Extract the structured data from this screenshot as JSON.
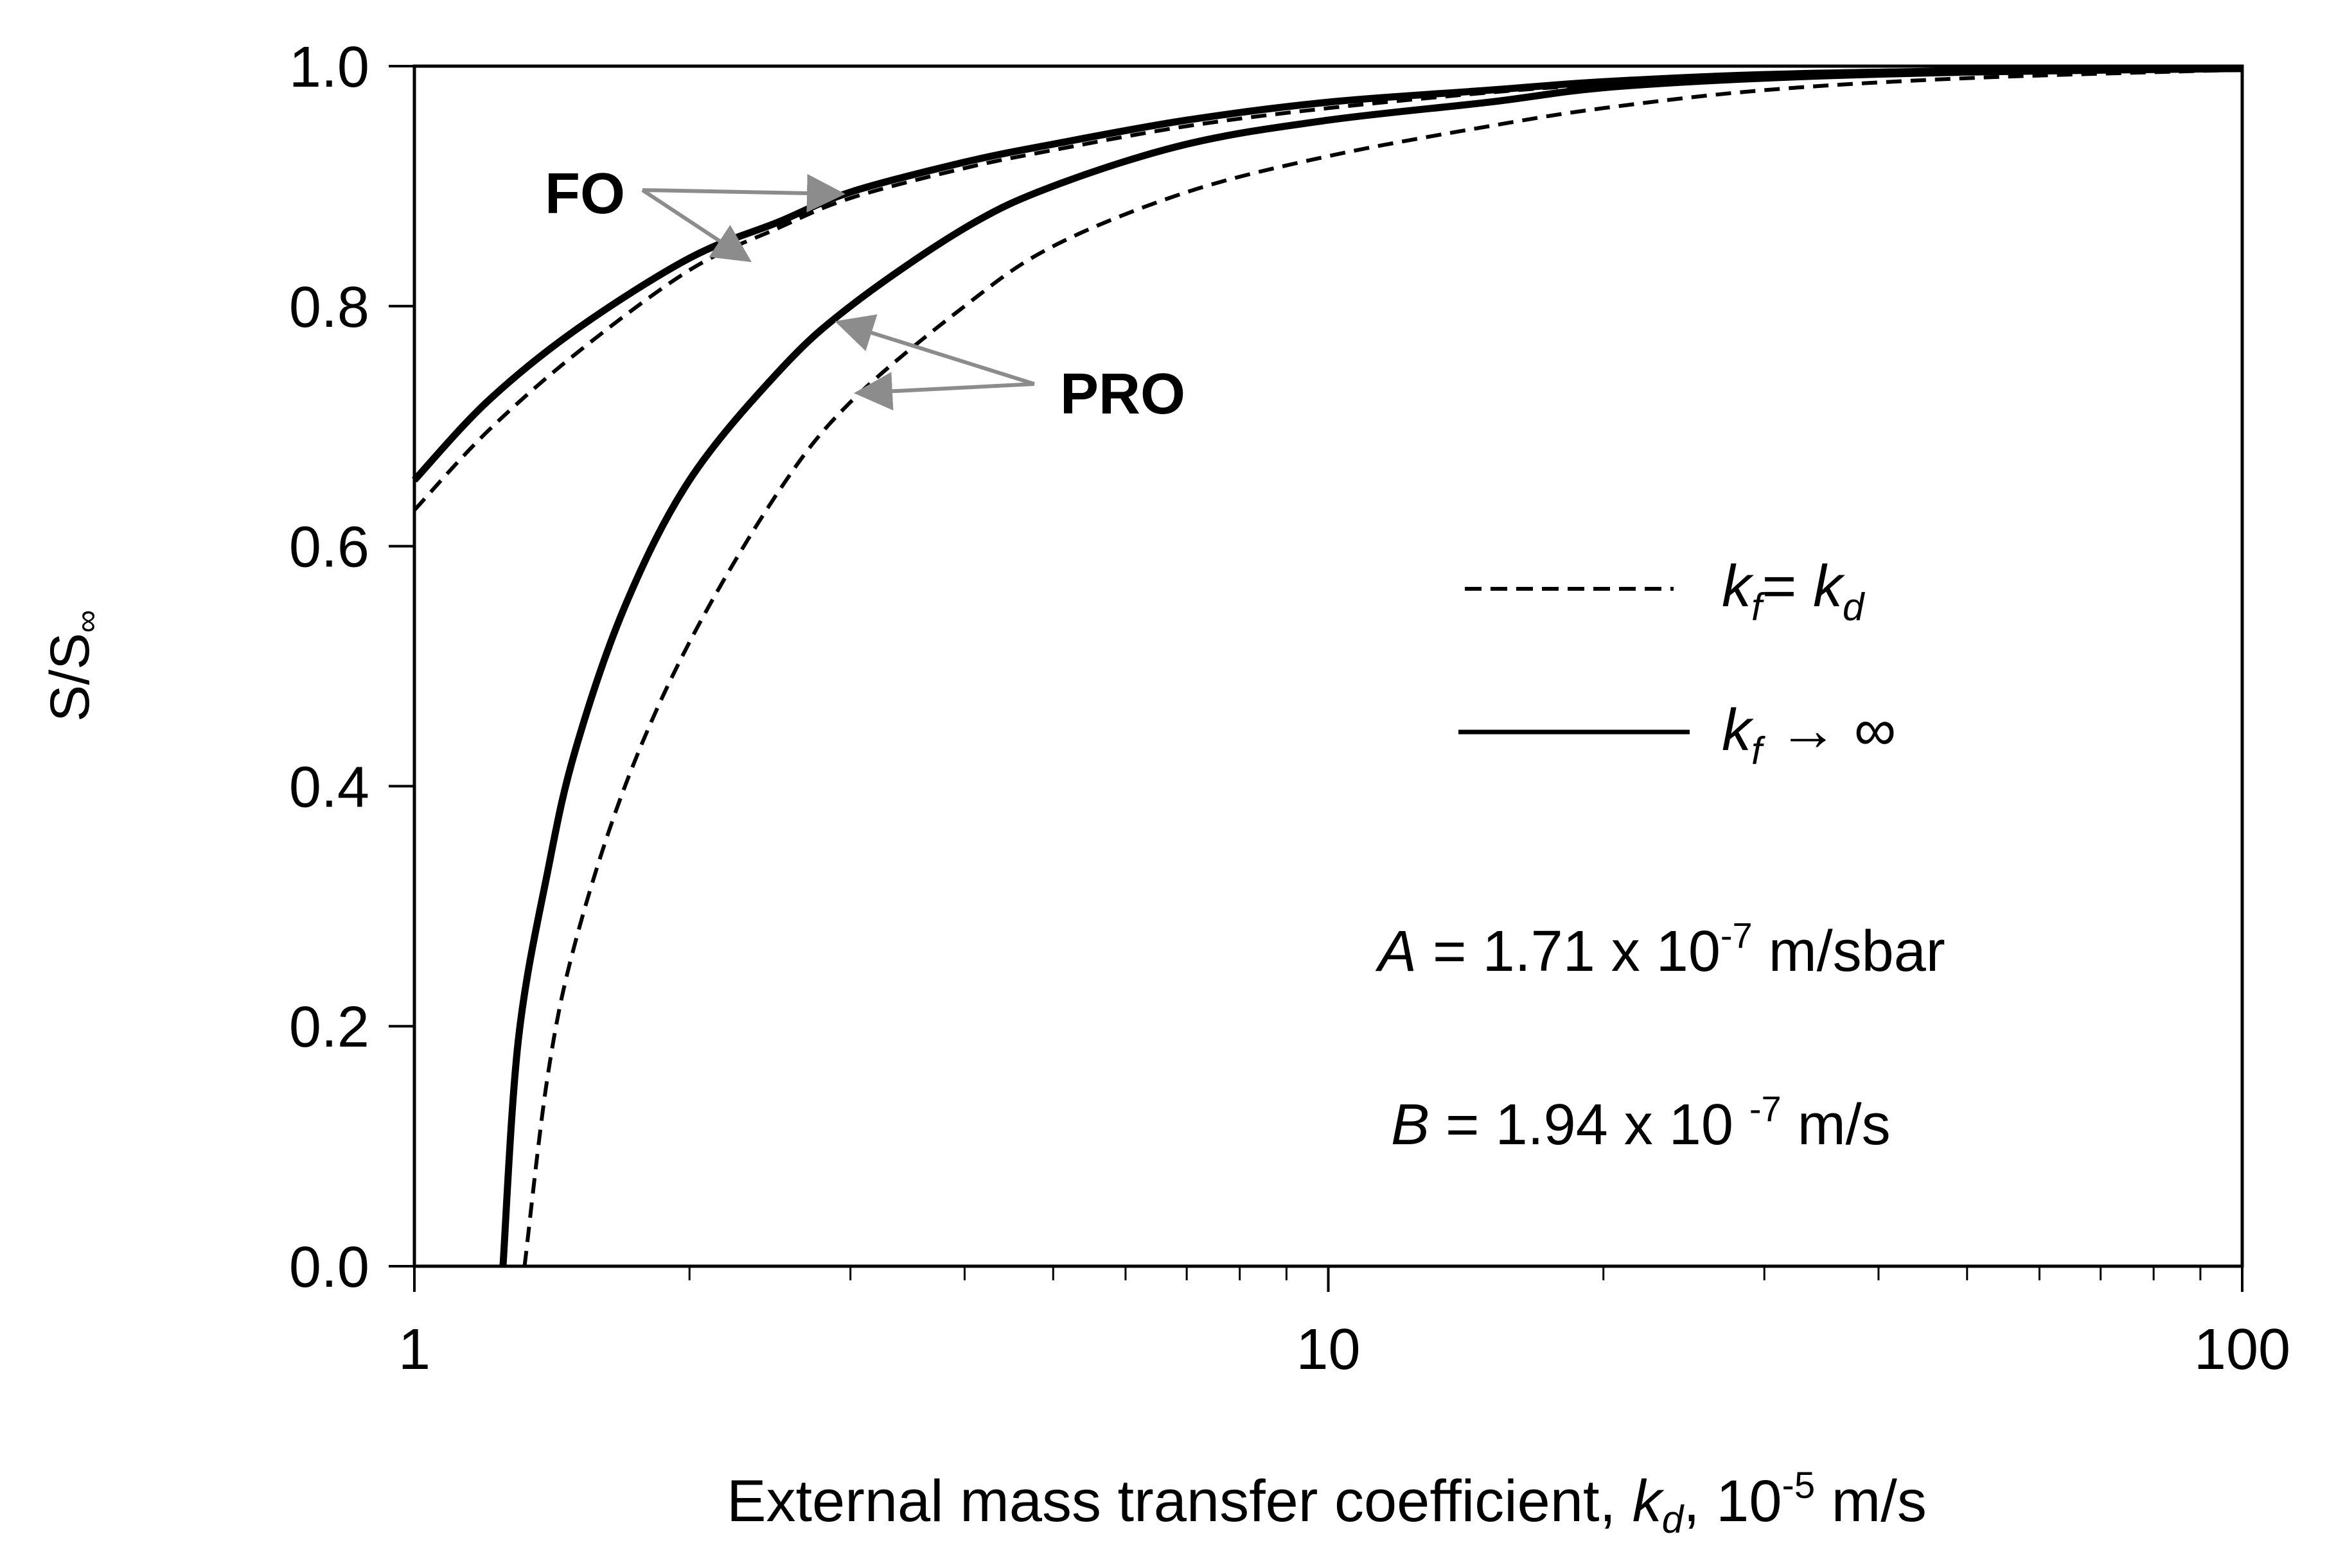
{
  "chart_data": {
    "type": "line",
    "xlabel": {
      "main": "External mass transfer coefficient,",
      "var": "k",
      "var_sub": "d",
      "unit_pre": ", 10",
      "unit_exp": "-5",
      "unit_post": " m/s"
    },
    "ylabel": {
      "main": "S/S",
      "sub": "∞"
    },
    "x_scale": "log",
    "xlim": [
      1,
      100
    ],
    "ylim": [
      0,
      1
    ],
    "x_ticks": [
      {
        "value": 1,
        "label": "1"
      },
      {
        "value": 10,
        "label": "10"
      },
      {
        "value": 100,
        "label": "100"
      }
    ],
    "y_ticks": [
      {
        "value": 0,
        "label": "0.0"
      },
      {
        "value": 0.2,
        "label": "0.2"
      },
      {
        "value": 0.4,
        "label": "0.4"
      },
      {
        "value": 0.6,
        "label": "0.6"
      },
      {
        "value": 0.8,
        "label": "0.8"
      },
      {
        "value": 1.0,
        "label": "1.0"
      }
    ],
    "grid": false,
    "legend": {
      "placement": "right",
      "entries": [
        {
          "style": "dashed",
          "label_var": "k",
          "label_sub": "f",
          "label_mid": "= ",
          "label_var2": "k",
          "label_sub2": "d",
          "label_tail": ""
        },
        {
          "style": "solid",
          "label_var": "k",
          "label_sub": "f",
          "label_mid": " → ∞",
          "label_var2": "",
          "label_sub2": "",
          "label_tail": ""
        }
      ]
    },
    "annotations": {
      "fo": "FO",
      "pro": "PRO",
      "param_a": {
        "var": "A",
        "pre": " = 1.71 x 10",
        "exp": "-7",
        "post": " m/sbar"
      },
      "param_b": {
        "var": "B",
        "pre": " = 1.94 x 10 ",
        "exp": "-7",
        "post": " m/s"
      }
    },
    "series": [
      {
        "group": "FO",
        "style": "solid",
        "points": [
          [
            1,
            0.655
          ],
          [
            1.2,
            0.72
          ],
          [
            1.5,
            0.78
          ],
          [
            2,
            0.84
          ],
          [
            2.5,
            0.87
          ],
          [
            3,
            0.895
          ],
          [
            4,
            0.92
          ],
          [
            5,
            0.935
          ],
          [
            7,
            0.955
          ],
          [
            10,
            0.97
          ],
          [
            15,
            0.98
          ],
          [
            20,
            0.987
          ],
          [
            30,
            0.993
          ],
          [
            50,
            0.996
          ],
          [
            100,
            0.998
          ]
        ]
      },
      {
        "group": "FO",
        "style": "dashed",
        "points": [
          [
            1,
            0.63
          ],
          [
            1.2,
            0.695
          ],
          [
            1.5,
            0.76
          ],
          [
            2,
            0.83
          ],
          [
            2.5,
            0.865
          ],
          [
            3,
            0.89
          ],
          [
            4,
            0.915
          ],
          [
            5,
            0.93
          ],
          [
            7,
            0.95
          ],
          [
            10,
            0.965
          ],
          [
            15,
            0.978
          ],
          [
            20,
            0.985
          ],
          [
            30,
            0.992
          ],
          [
            50,
            0.995
          ],
          [
            100,
            0.998
          ]
        ]
      },
      {
        "group": "PRO",
        "style": "solid",
        "points": [
          [
            1.25,
            0.0
          ],
          [
            1.3,
            0.19
          ],
          [
            1.4,
            0.33
          ],
          [
            1.5,
            0.43
          ],
          [
            1.7,
            0.55
          ],
          [
            2,
            0.655
          ],
          [
            2.5,
            0.745
          ],
          [
            3,
            0.8
          ],
          [
            4,
            0.865
          ],
          [
            5,
            0.9
          ],
          [
            7,
            0.935
          ],
          [
            10,
            0.955
          ],
          [
            15,
            0.97
          ],
          [
            20,
            0.982
          ],
          [
            30,
            0.99
          ],
          [
            50,
            0.995
          ],
          [
            100,
            0.998
          ]
        ]
      },
      {
        "group": "PRO",
        "style": "dashed",
        "points": [
          [
            1.32,
            0.0
          ],
          [
            1.4,
            0.16
          ],
          [
            1.5,
            0.27
          ],
          [
            1.7,
            0.4
          ],
          [
            2,
            0.52
          ],
          [
            2.5,
            0.645
          ],
          [
            3,
            0.72
          ],
          [
            4,
            0.8
          ],
          [
            5,
            0.85
          ],
          [
            7,
            0.895
          ],
          [
            10,
            0.925
          ],
          [
            15,
            0.95
          ],
          [
            20,
            0.965
          ],
          [
            30,
            0.98
          ],
          [
            50,
            0.99
          ],
          [
            100,
            0.997
          ]
        ]
      }
    ]
  }
}
